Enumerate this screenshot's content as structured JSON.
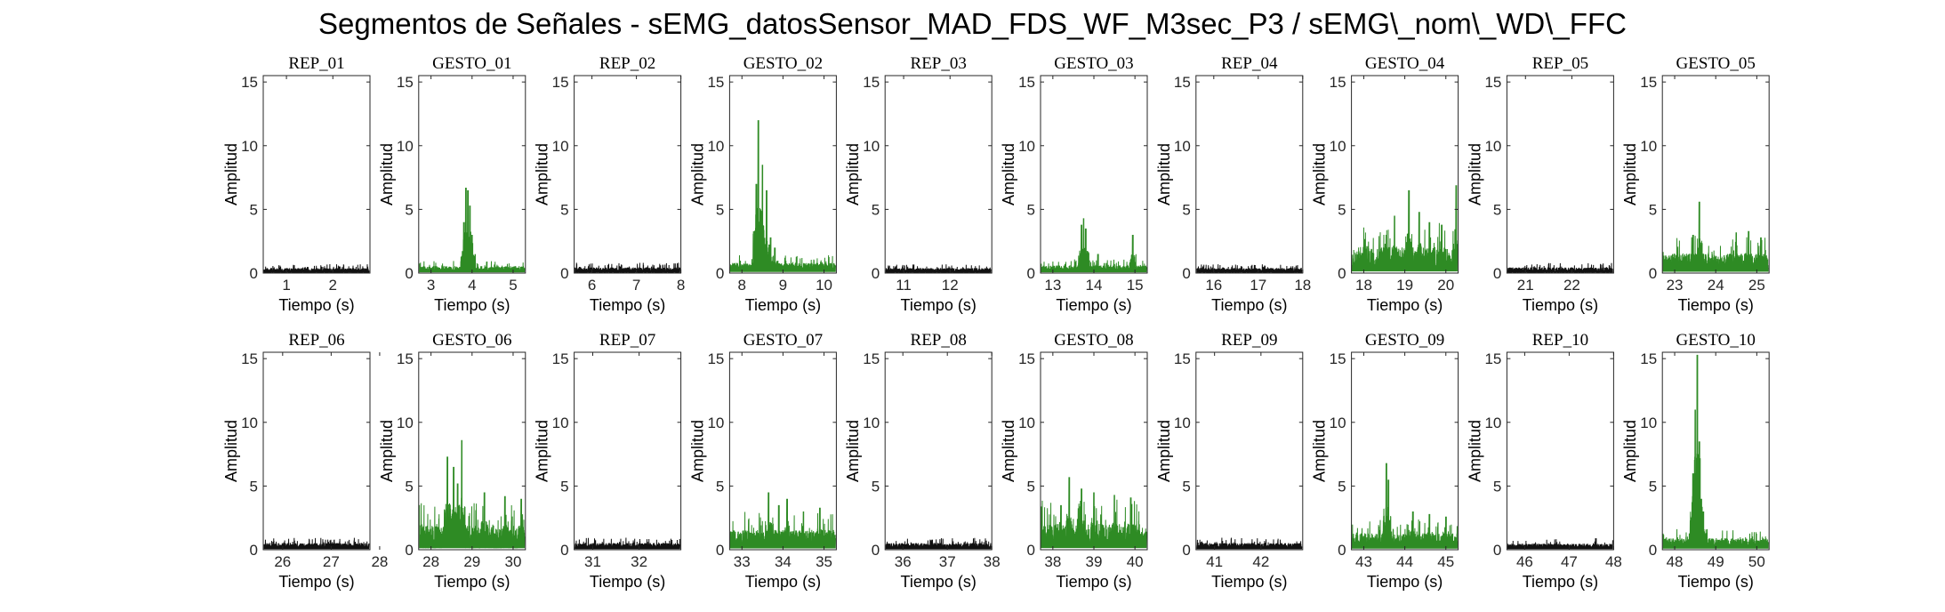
{
  "figure": {
    "title": "Segmentos de Señales - sEMG_datosSensor_MAD_FDS_WF_M3sec_P3 / sEMG\\_nom\\_WD\\_FFC"
  },
  "colors": {
    "rep": "#111111",
    "gesto": "#2e8b24",
    "axis": "#262626"
  },
  "chart_data": [
    {
      "type": "line",
      "title": "REP_01",
      "kind": "rep",
      "xlim": [
        0.5,
        2.8
      ],
      "xticks": [
        1,
        2
      ],
      "ylim": [
        0,
        15.5
      ],
      "yticks": [
        0,
        5,
        10,
        15
      ],
      "xlabel": "Tiempo (s)",
      "ylabel": "Amplitud",
      "base": 0.3,
      "noise": 0.25,
      "peaks": []
    },
    {
      "type": "line",
      "title": "GESTO_01",
      "kind": "gesto",
      "xlim": [
        2.7,
        5.3
      ],
      "xticks": [
        3,
        4,
        5
      ],
      "ylim": [
        0,
        15.5
      ],
      "yticks": [
        0,
        5,
        10,
        15
      ],
      "xlabel": "Tiempo (s)",
      "ylabel": "Amplitud",
      "base": 0.4,
      "noise": 0.35,
      "peaks": [
        [
          3.85,
          6.7
        ],
        [
          3.9,
          6.5
        ],
        [
          3.95,
          5.3
        ],
        [
          3.8,
          4.0
        ],
        [
          4.0,
          3.0
        ]
      ]
    },
    {
      "type": "line",
      "title": "REP_02",
      "kind": "rep",
      "xlim": [
        5.6,
        8.0
      ],
      "xticks": [
        6,
        7,
        8
      ],
      "ylim": [
        0,
        15.5
      ],
      "yticks": [
        0,
        5,
        10,
        15
      ],
      "xlabel": "Tiempo (s)",
      "ylabel": "Amplitud",
      "base": 0.3,
      "noise": 0.3,
      "peaks": []
    },
    {
      "type": "line",
      "title": "GESTO_02",
      "kind": "gesto",
      "xlim": [
        7.7,
        10.3
      ],
      "xticks": [
        8,
        9,
        10
      ],
      "ylim": [
        0,
        15.5
      ],
      "yticks": [
        0,
        5,
        10,
        15
      ],
      "xlabel": "Tiempo (s)",
      "ylabel": "Amplitud",
      "base": 0.6,
      "noise": 0.5,
      "peaks": [
        [
          8.4,
          12.0
        ],
        [
          8.35,
          7.0
        ],
        [
          8.5,
          8.5
        ],
        [
          8.6,
          6.5
        ],
        [
          8.45,
          5.0
        ],
        [
          8.7,
          2.8
        ],
        [
          8.8,
          2.0
        ]
      ]
    },
    {
      "type": "line",
      "title": "REP_03",
      "kind": "rep",
      "xlim": [
        10.6,
        12.9
      ],
      "xticks": [
        11,
        12
      ],
      "ylim": [
        0,
        15.5
      ],
      "yticks": [
        0,
        5,
        10,
        15
      ],
      "xlabel": "Tiempo (s)",
      "ylabel": "Amplitud",
      "base": 0.3,
      "noise": 0.25,
      "peaks": []
    },
    {
      "type": "line",
      "title": "GESTO_03",
      "kind": "gesto",
      "xlim": [
        12.7,
        15.3
      ],
      "xticks": [
        13,
        14,
        15
      ],
      "ylim": [
        0,
        15.5
      ],
      "yticks": [
        0,
        5,
        10,
        15
      ],
      "xlabel": "Tiempo (s)",
      "ylabel": "Amplitud",
      "base": 0.4,
      "noise": 0.4,
      "peaks": [
        [
          13.75,
          4.3
        ],
        [
          13.7,
          3.8
        ],
        [
          13.8,
          3.5
        ],
        [
          14.95,
          3.0
        ],
        [
          14.1,
          1.5
        ]
      ]
    },
    {
      "type": "line",
      "title": "REP_04",
      "kind": "rep",
      "xlim": [
        15.6,
        18.0
      ],
      "xticks": [
        16,
        17,
        18
      ],
      "ylim": [
        0,
        15.5
      ],
      "yticks": [
        0,
        5,
        10,
        15
      ],
      "xlabel": "Tiempo (s)",
      "ylabel": "Amplitud",
      "base": 0.3,
      "noise": 0.25,
      "peaks": []
    },
    {
      "type": "line",
      "title": "GESTO_04",
      "kind": "gesto",
      "xlim": [
        17.7,
        20.3
      ],
      "xticks": [
        18,
        19,
        20
      ],
      "ylim": [
        0,
        15.5
      ],
      "yticks": [
        0,
        5,
        10,
        15
      ],
      "xlabel": "Tiempo (s)",
      "ylabel": "Amplitud",
      "base": 0.9,
      "noise": 1.6,
      "peaks": [
        [
          19.1,
          6.5
        ],
        [
          20.25,
          6.9
        ],
        [
          18.75,
          4.5
        ],
        [
          19.35,
          4.8
        ],
        [
          19.6,
          4.0
        ],
        [
          19.9,
          3.8
        ],
        [
          18.55,
          3.0
        ]
      ]
    },
    {
      "type": "line",
      "title": "REP_05",
      "kind": "rep",
      "xlim": [
        20.6,
        22.9
      ],
      "xticks": [
        21,
        22
      ],
      "ylim": [
        0,
        15.5
      ],
      "yticks": [
        0,
        5,
        10,
        15
      ],
      "xlabel": "Tiempo (s)",
      "ylabel": "Amplitud",
      "base": 0.3,
      "noise": 0.3,
      "peaks": []
    },
    {
      "type": "line",
      "title": "GESTO_05",
      "kind": "gesto",
      "xlim": [
        22.7,
        25.3
      ],
      "xticks": [
        23,
        24,
        25
      ],
      "ylim": [
        0,
        15.5
      ],
      "yticks": [
        0,
        5,
        10,
        15
      ],
      "xlabel": "Tiempo (s)",
      "ylabel": "Amplitud",
      "base": 0.7,
      "noise": 1.2,
      "peaks": [
        [
          23.6,
          5.6
        ],
        [
          23.45,
          3.0
        ],
        [
          24.5,
          3.2
        ],
        [
          24.8,
          3.3
        ],
        [
          25.1,
          2.8
        ]
      ]
    },
    {
      "type": "line",
      "title": "REP_06",
      "kind": "rep",
      "xlim": [
        25.6,
        27.8
      ],
      "xticks": [
        26,
        27,
        28
      ],
      "ylim": [
        0,
        15.5
      ],
      "yticks": [
        0,
        5,
        10,
        15
      ],
      "xlabel": "Tiempo (s)",
      "ylabel": "Amplitud",
      "base": 0.35,
      "noise": 0.35,
      "peaks": []
    },
    {
      "type": "line",
      "title": "GESTO_06",
      "kind": "gesto",
      "xlim": [
        27.7,
        30.3
      ],
      "xticks": [
        28,
        29,
        30
      ],
      "ylim": [
        0,
        15.5
      ],
      "yticks": [
        0,
        5,
        10,
        15
      ],
      "xlabel": "Tiempo (s)",
      "ylabel": "Amplitud",
      "base": 0.8,
      "noise": 1.5,
      "peaks": [
        [
          28.75,
          8.6
        ],
        [
          28.4,
          7.3
        ],
        [
          28.55,
          6.5
        ],
        [
          28.65,
          5.2
        ],
        [
          29.3,
          4.5
        ],
        [
          29.8,
          4.2
        ],
        [
          30.2,
          4.0
        ]
      ]
    },
    {
      "type": "line",
      "title": "REP_07",
      "kind": "rep",
      "xlim": [
        30.6,
        32.9
      ],
      "xticks": [
        31,
        32
      ],
      "ylim": [
        0,
        15.5
      ],
      "yticks": [
        0,
        5,
        10,
        15
      ],
      "xlabel": "Tiempo (s)",
      "ylabel": "Amplitud",
      "base": 0.35,
      "noise": 0.35,
      "peaks": []
    },
    {
      "type": "line",
      "title": "GESTO_07",
      "kind": "gesto",
      "xlim": [
        32.7,
        35.3
      ],
      "xticks": [
        33,
        34,
        35
      ],
      "ylim": [
        0,
        15.5
      ],
      "yticks": [
        0,
        5,
        10,
        15
      ],
      "xlabel": "Tiempo (s)",
      "ylabel": "Amplitud",
      "base": 0.7,
      "noise": 1.2,
      "peaks": [
        [
          33.65,
          4.5
        ],
        [
          34.1,
          4.0
        ],
        [
          34.9,
          3.3
        ],
        [
          33.9,
          3.5
        ],
        [
          34.5,
          3.0
        ]
      ]
    },
    {
      "type": "line",
      "title": "REP_08",
      "kind": "rep",
      "xlim": [
        35.6,
        38.0
      ],
      "xticks": [
        36,
        37,
        38
      ],
      "ylim": [
        0,
        15.5
      ],
      "yticks": [
        0,
        5,
        10,
        15
      ],
      "xlabel": "Tiempo (s)",
      "ylabel": "Amplitud",
      "base": 0.35,
      "noise": 0.35,
      "peaks": []
    },
    {
      "type": "line",
      "title": "GESTO_08",
      "kind": "gesto",
      "xlim": [
        37.7,
        40.3
      ],
      "xticks": [
        38,
        39,
        40
      ],
      "ylim": [
        0,
        15.5
      ],
      "yticks": [
        0,
        5,
        10,
        15
      ],
      "xlabel": "Tiempo (s)",
      "ylabel": "Amplitud",
      "base": 0.9,
      "noise": 1.6,
      "peaks": [
        [
          38.4,
          5.7
        ],
        [
          38.7,
          4.8
        ],
        [
          39.0,
          4.5
        ],
        [
          39.5,
          4.3
        ],
        [
          39.9,
          4.1
        ],
        [
          38.2,
          3.5
        ]
      ]
    },
    {
      "type": "line",
      "title": "REP_09",
      "kind": "rep",
      "xlim": [
        40.6,
        42.9
      ],
      "xticks": [
        41,
        42
      ],
      "ylim": [
        0,
        15.5
      ],
      "yticks": [
        0,
        5,
        10,
        15
      ],
      "xlabel": "Tiempo (s)",
      "ylabel": "Amplitud",
      "base": 0.35,
      "noise": 0.35,
      "peaks": []
    },
    {
      "type": "line",
      "title": "GESTO_09",
      "kind": "gesto",
      "xlim": [
        42.7,
        45.3
      ],
      "xticks": [
        43,
        44,
        45
      ],
      "ylim": [
        0,
        15.5
      ],
      "yticks": [
        0,
        5,
        10,
        15
      ],
      "xlabel": "Tiempo (s)",
      "ylabel": "Amplitud",
      "base": 0.6,
      "noise": 1.0,
      "peaks": [
        [
          43.55,
          6.8
        ],
        [
          43.6,
          5.5
        ],
        [
          44.2,
          3.0
        ],
        [
          44.6,
          2.8
        ],
        [
          45.0,
          2.6
        ]
      ]
    },
    {
      "type": "line",
      "title": "REP_10",
      "kind": "rep",
      "xlim": [
        45.6,
        48.0
      ],
      "xticks": [
        46,
        47,
        48
      ],
      "ylim": [
        0,
        15.5
      ],
      "yticks": [
        0,
        5,
        10,
        15
      ],
      "xlabel": "Tiempo (s)",
      "ylabel": "Amplitud",
      "base": 0.35,
      "noise": 0.3,
      "peaks": [
        [
          47.6,
          0.9
        ]
      ]
    },
    {
      "type": "line",
      "title": "GESTO_10",
      "kind": "gesto",
      "xlim": [
        47.7,
        50.3
      ],
      "xticks": [
        48,
        49,
        50
      ],
      "ylim": [
        0,
        15.5
      ],
      "yticks": [
        0,
        5,
        10,
        15
      ],
      "xlabel": "Tiempo (s)",
      "ylabel": "Amplitud",
      "base": 0.6,
      "noise": 0.6,
      "peaks": [
        [
          48.55,
          15.3
        ],
        [
          48.5,
          11.0
        ],
        [
          48.6,
          8.5
        ],
        [
          48.45,
          6.0
        ],
        [
          48.65,
          4.0
        ],
        [
          48.7,
          3.0
        ]
      ]
    }
  ]
}
